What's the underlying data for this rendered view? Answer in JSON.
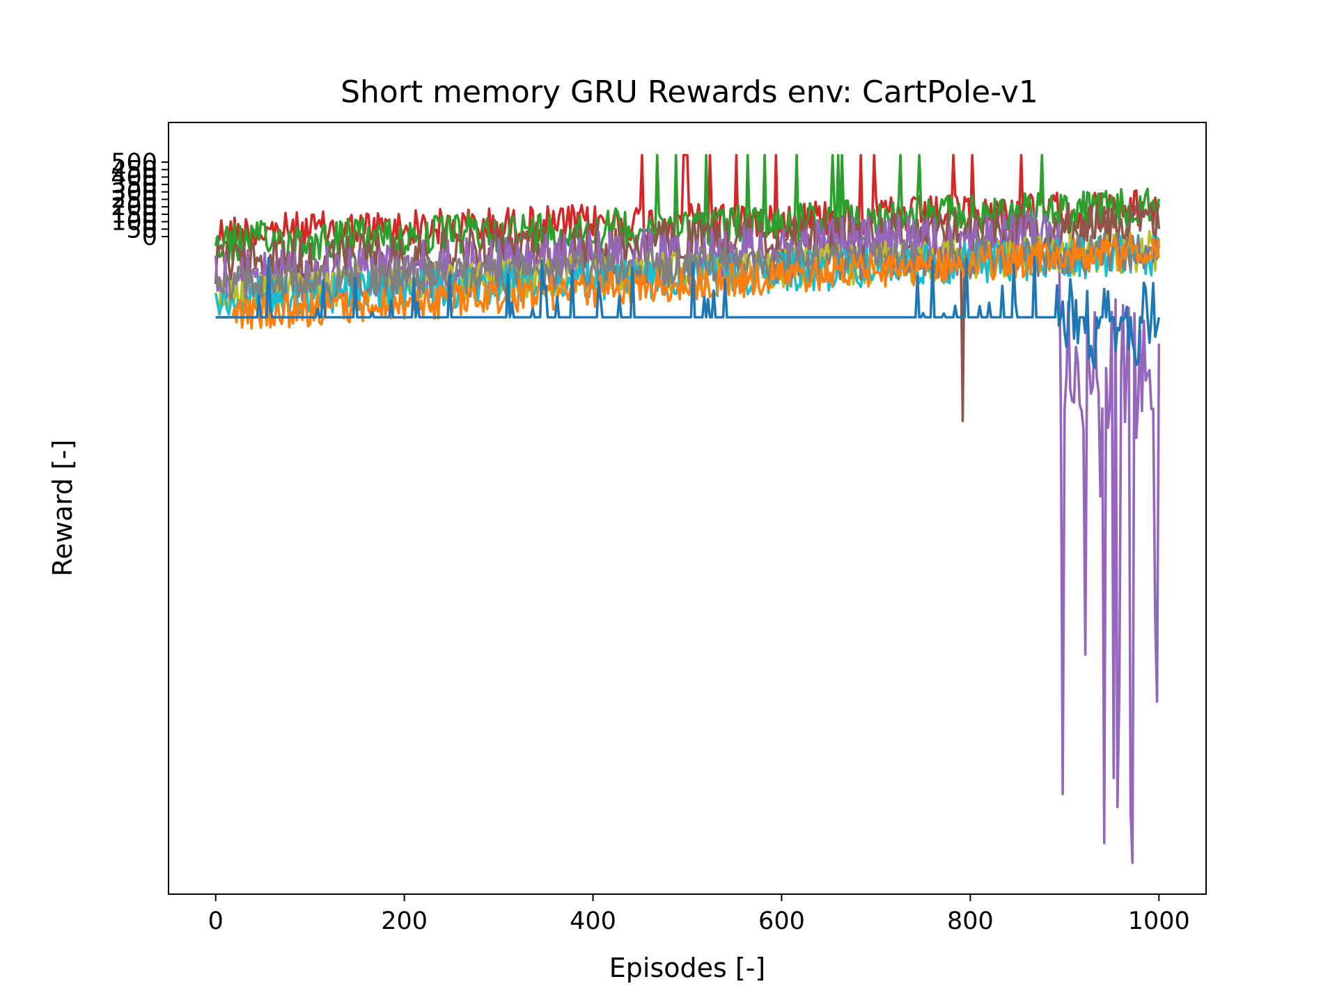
{
  "chart_data": {
    "type": "line",
    "title": "Short memory GRU Rewards env: CartPole-v1",
    "xlabel": "Episodes [-]",
    "ylabel": "Reward [-]",
    "xlim": [
      -50,
      1050
    ],
    "x_ticks": [
      0,
      200,
      400,
      600,
      800,
      1000
    ],
    "y_ticks": [
      "0",
      "50",
      "100",
      "150",
      "200",
      "250",
      "300",
      "350",
      "400",
      "450",
      "500"
    ],
    "y_ticks_overlapping": true,
    "grid": false,
    "legend": "none",
    "episodes": 1000,
    "series": [
      {
        "color": "#d62728",
        "description_level": 20,
        "noise": 90,
        "spikes_up": 45,
        "trend": 95
      },
      {
        "color": "#2ca02c",
        "description_level": 10,
        "noise": 80,
        "spikes_up": 50,
        "trend": 90
      },
      {
        "color": "#8c564b",
        "description_level": -20,
        "noise": 90,
        "spikes_down": 1,
        "trend": 90
      },
      {
        "color": "#9467bd",
        "description_level": -40,
        "noise": 60,
        "spikes_down": 20
      },
      {
        "color": "#bcbd22",
        "description_level": -70,
        "noise": 50
      },
      {
        "color": "#17becf",
        "description_level": -80,
        "noise": 50
      },
      {
        "color": "#7f7f7f",
        "description_level": -60,
        "noise": 60
      },
      {
        "color": "#ff7f0e",
        "description_level": -150,
        "noise": 40,
        "trend": 130
      },
      {
        "color": "#1f77b4",
        "description_level": -150,
        "noise": 20
      }
    ]
  }
}
